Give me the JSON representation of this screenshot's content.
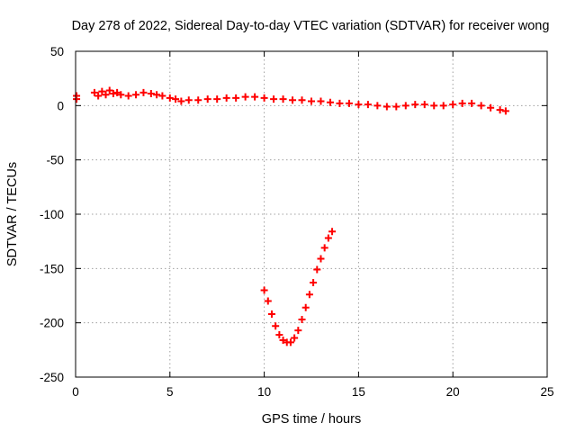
{
  "chart_data": {
    "type": "scatter",
    "title": "Day 278 of 2022, Sidereal Day-to-day VTEC variation (SDTVAR) for receiver wong",
    "xlabel": "GPS time / hours",
    "ylabel": "SDTVAR / TECUs",
    "xlim": [
      0,
      25
    ],
    "ylim": [
      -250,
      50
    ],
    "xticks": [
      0,
      5,
      10,
      15,
      20,
      25
    ],
    "yticks": [
      -250,
      -200,
      -150,
      -100,
      -50,
      0,
      50
    ],
    "grid": true,
    "marker": "plus",
    "color": "#ff0000",
    "series": [
      {
        "name": "SDTVAR",
        "points": [
          [
            0.05,
            9
          ],
          [
            0.05,
            6
          ],
          [
            1.0,
            12
          ],
          [
            1.2,
            9
          ],
          [
            1.4,
            13
          ],
          [
            1.6,
            10
          ],
          [
            1.8,
            14
          ],
          [
            2.0,
            11
          ],
          [
            2.2,
            12
          ],
          [
            2.4,
            10
          ],
          [
            2.8,
            9
          ],
          [
            3.2,
            10
          ],
          [
            3.6,
            12
          ],
          [
            4.0,
            11
          ],
          [
            4.3,
            10
          ],
          [
            4.6,
            9
          ],
          [
            5.0,
            7
          ],
          [
            5.3,
            6
          ],
          [
            5.6,
            4
          ],
          [
            6.0,
            5
          ],
          [
            6.5,
            5
          ],
          [
            7.0,
            6
          ],
          [
            7.5,
            6
          ],
          [
            8.0,
            7
          ],
          [
            8.5,
            7
          ],
          [
            9.0,
            8
          ],
          [
            9.5,
            8
          ],
          [
            10.0,
            7
          ],
          [
            10.5,
            6
          ],
          [
            11.0,
            6
          ],
          [
            11.5,
            5
          ],
          [
            12.0,
            5
          ],
          [
            12.5,
            4
          ],
          [
            13.0,
            4
          ],
          [
            13.5,
            3
          ],
          [
            14.0,
            2
          ],
          [
            14.5,
            2
          ],
          [
            15.0,
            1
          ],
          [
            15.5,
            1
          ],
          [
            16.0,
            0
          ],
          [
            16.5,
            -1
          ],
          [
            17.0,
            -1
          ],
          [
            17.5,
            0
          ],
          [
            18.0,
            1
          ],
          [
            18.5,
            1
          ],
          [
            19.0,
            0
          ],
          [
            19.5,
            0
          ],
          [
            20.0,
            1
          ],
          [
            20.5,
            2
          ],
          [
            21.0,
            2
          ],
          [
            21.5,
            0
          ],
          [
            22.0,
            -2
          ],
          [
            22.5,
            -4
          ],
          [
            22.8,
            -5
          ],
          [
            10.0,
            -170
          ],
          [
            10.2,
            -180
          ],
          [
            10.4,
            -192
          ],
          [
            10.6,
            -203
          ],
          [
            10.8,
            -211
          ],
          [
            11.0,
            -216
          ],
          [
            11.2,
            -218
          ],
          [
            11.4,
            -218
          ],
          [
            11.6,
            -214
          ],
          [
            11.8,
            -207
          ],
          [
            12.0,
            -197
          ],
          [
            12.2,
            -186
          ],
          [
            12.4,
            -174
          ],
          [
            12.6,
            -163
          ],
          [
            12.8,
            -151
          ],
          [
            13.0,
            -141
          ],
          [
            13.2,
            -131
          ],
          [
            13.4,
            -122
          ],
          [
            13.6,
            -116
          ]
        ]
      }
    ]
  }
}
